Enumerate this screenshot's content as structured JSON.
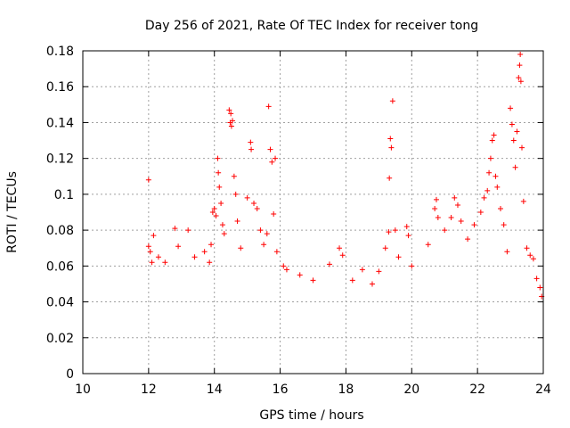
{
  "chart_data": {
    "type": "scatter",
    "title": "Day 256 of 2021, Rate Of TEC Index for receiver tong",
    "xlabel": "GPS time / hours",
    "ylabel": "ROTI / TECUs",
    "xlim": [
      10,
      24
    ],
    "ylim": [
      0,
      0.18
    ],
    "xticks": [
      "10",
      "12",
      "14",
      "16",
      "18",
      "20",
      "22",
      "24"
    ],
    "yticks": [
      "0",
      "0.02",
      "0.04",
      "0.06",
      "0.08",
      "0.1",
      "0.12",
      "0.14",
      "0.16",
      "0.18"
    ],
    "grid": true,
    "marker": "+",
    "series": [
      {
        "name": "ROTI",
        "color": "#ff0000",
        "points": [
          [
            12.0,
            0.108
          ],
          [
            12.0,
            0.071
          ],
          [
            12.05,
            0.068
          ],
          [
            12.1,
            0.062
          ],
          [
            12.15,
            0.077
          ],
          [
            12.3,
            0.065
          ],
          [
            12.5,
            0.062
          ],
          [
            12.8,
            0.081
          ],
          [
            12.9,
            0.071
          ],
          [
            13.2,
            0.08
          ],
          [
            13.4,
            0.065
          ],
          [
            13.7,
            0.068
          ],
          [
            13.85,
            0.062
          ],
          [
            13.9,
            0.072
          ],
          [
            13.95,
            0.09
          ],
          [
            14.0,
            0.092
          ],
          [
            14.05,
            0.088
          ],
          [
            14.1,
            0.12
          ],
          [
            14.12,
            0.112
          ],
          [
            14.15,
            0.104
          ],
          [
            14.2,
            0.095
          ],
          [
            14.25,
            0.083
          ],
          [
            14.3,
            0.078
          ],
          [
            14.45,
            0.147
          ],
          [
            14.48,
            0.14
          ],
          [
            14.5,
            0.145
          ],
          [
            14.52,
            0.138
          ],
          [
            14.55,
            0.141
          ],
          [
            14.6,
            0.11
          ],
          [
            14.65,
            0.1
          ],
          [
            14.7,
            0.085
          ],
          [
            14.8,
            0.07
          ],
          [
            15.0,
            0.098
          ],
          [
            15.1,
            0.129
          ],
          [
            15.12,
            0.125
          ],
          [
            15.2,
            0.095
          ],
          [
            15.3,
            0.092
          ],
          [
            15.4,
            0.08
          ],
          [
            15.5,
            0.072
          ],
          [
            15.6,
            0.078
          ],
          [
            15.65,
            0.149
          ],
          [
            15.7,
            0.125
          ],
          [
            15.75,
            0.118
          ],
          [
            15.85,
            0.12
          ],
          [
            15.8,
            0.089
          ],
          [
            15.9,
            0.068
          ],
          [
            16.1,
            0.06
          ],
          [
            16.2,
            0.058
          ],
          [
            16.6,
            0.055
          ],
          [
            17.0,
            0.052
          ],
          [
            17.5,
            0.061
          ],
          [
            17.8,
            0.07
          ],
          [
            17.9,
            0.066
          ],
          [
            18.2,
            0.052
          ],
          [
            18.5,
            0.058
          ],
          [
            18.8,
            0.05
          ],
          [
            19.0,
            0.057
          ],
          [
            19.2,
            0.07
          ],
          [
            19.3,
            0.079
          ],
          [
            19.32,
            0.109
          ],
          [
            19.35,
            0.131
          ],
          [
            19.38,
            0.126
          ],
          [
            19.42,
            0.152
          ],
          [
            19.5,
            0.08
          ],
          [
            19.6,
            0.065
          ],
          [
            19.85,
            0.082
          ],
          [
            19.9,
            0.077
          ],
          [
            20.0,
            0.06
          ],
          [
            20.5,
            0.072
          ],
          [
            20.7,
            0.092
          ],
          [
            20.75,
            0.097
          ],
          [
            20.8,
            0.087
          ],
          [
            21.0,
            0.08
          ],
          [
            21.2,
            0.087
          ],
          [
            21.3,
            0.098
          ],
          [
            21.4,
            0.094
          ],
          [
            21.5,
            0.085
          ],
          [
            21.7,
            0.075
          ],
          [
            21.9,
            0.083
          ],
          [
            22.1,
            0.09
          ],
          [
            22.2,
            0.098
          ],
          [
            22.3,
            0.102
          ],
          [
            22.35,
            0.112
          ],
          [
            22.4,
            0.12
          ],
          [
            22.45,
            0.13
          ],
          [
            22.5,
            0.133
          ],
          [
            22.55,
            0.11
          ],
          [
            22.6,
            0.104
          ],
          [
            22.7,
            0.092
          ],
          [
            22.8,
            0.083
          ],
          [
            22.9,
            0.068
          ],
          [
            23.0,
            0.148
          ],
          [
            23.05,
            0.139
          ],
          [
            23.1,
            0.13
          ],
          [
            23.15,
            0.115
          ],
          [
            23.2,
            0.135
          ],
          [
            23.25,
            0.165
          ],
          [
            23.28,
            0.172
          ],
          [
            23.3,
            0.178
          ],
          [
            23.32,
            0.163
          ],
          [
            23.35,
            0.126
          ],
          [
            23.4,
            0.096
          ],
          [
            23.5,
            0.07
          ],
          [
            23.6,
            0.066
          ],
          [
            23.7,
            0.064
          ],
          [
            23.8,
            0.053
          ],
          [
            23.9,
            0.048
          ],
          [
            23.95,
            0.043
          ]
        ]
      }
    ]
  }
}
